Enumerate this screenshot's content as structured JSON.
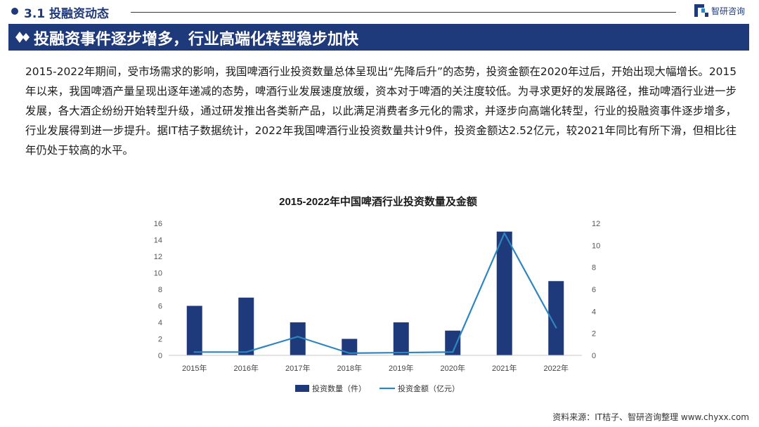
{
  "header": {
    "section_title": "3.1 投融资动态",
    "brand_name": "智研咨询"
  },
  "banner": {
    "title": "投融资事件逐步增多，行业高端化转型稳步加快"
  },
  "body": {
    "paragraph": "2015-2022年期间，受市场需求的影响，我国啤酒行业投资数量总体呈现出“先降后升”的态势，投资金额在2020年过后，开始出现大幅增长。2015年以来，我国啤酒产量呈现出逐年递减的态势，啤酒行业发展速度放缓，资本对于啤酒的关注度较低。为寻求更好的发展路径，推动啤酒行业进一步发展，各大酒企纷纷开始转型升级，通过研发推出各类新产品，以此满足消费者多元化的需求，并逐步向高端化转型，行业的投融资事件逐步增多，行业发展得到进一步提升。据IT桔子数据统计，2022年我国啤酒行业投资数量共计9件，投资金额达2.52亿元，较2021年同比有所下滑，但相比往年仍处于较高的水平。"
  },
  "chart_data": {
    "type": "bar",
    "title": "2015-2022年中国啤酒行业投资数量及金额",
    "categories": [
      "2015年",
      "2016年",
      "2017年",
      "2018年",
      "2019年",
      "2020年",
      "2021年",
      "2022年"
    ],
    "series": [
      {
        "name": "投资数量（件）",
        "type": "bar",
        "axis": "left",
        "color": "#1f3a7a",
        "values": [
          6,
          7,
          4,
          2,
          4,
          3,
          15,
          9
        ]
      },
      {
        "name": "投资金额（亿元）",
        "type": "line",
        "axis": "right",
        "color": "#2e86c1",
        "values": [
          0.3,
          0.3,
          1.7,
          0.2,
          0.25,
          0.3,
          11.1,
          2.52
        ]
      }
    ],
    "y_left": {
      "min": 0,
      "max": 16,
      "ticks": [
        0,
        2,
        4,
        6,
        8,
        10,
        12,
        14,
        16
      ]
    },
    "y_right": {
      "min": 0,
      "max": 12,
      "ticks": [
        0,
        2,
        4,
        6,
        8,
        10,
        12
      ]
    },
    "grid": false,
    "legend_position": "bottom"
  },
  "footer": {
    "source": "资料来源：IT桔子、智研咨询整理  www.chyxx.com"
  },
  "colors": {
    "brand": "#1f3a7a",
    "line": "#2e86c1"
  }
}
